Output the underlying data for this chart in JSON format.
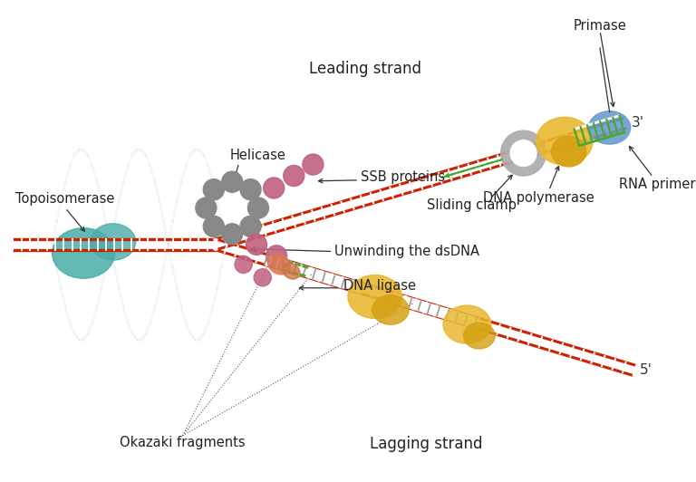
{
  "colors": {
    "dna_red": "#cc2200",
    "teal": "#4aada8",
    "gray_helicase": "#888888",
    "pink_ssb": "#c06080",
    "yellow_poly": "#e8b830",
    "blue_primer": "#6699cc",
    "green_rna": "#44aa33",
    "salmon_ligase": "#dd7755",
    "text": "#222222",
    "bg_helix": "#c0d8e8"
  },
  "labels": {
    "leading_strand": "Leading strand",
    "lagging_strand": "Lagging strand",
    "primase": "Primase",
    "sliding_clamp": "Sliding clamp",
    "dna_polymerase": "DNA polymerase",
    "rna_primer": "RNA primer",
    "helicase": "Helicase",
    "topoisomerase": "Topoisomerase",
    "ssb_proteins": "SSB proteins",
    "unwinding": "Unwinding the dsDNA",
    "dna_ligase": "DNA ligase",
    "okazaki": "Okazaki fragments",
    "three_prime": "3'",
    "five_prime": "5'"
  }
}
